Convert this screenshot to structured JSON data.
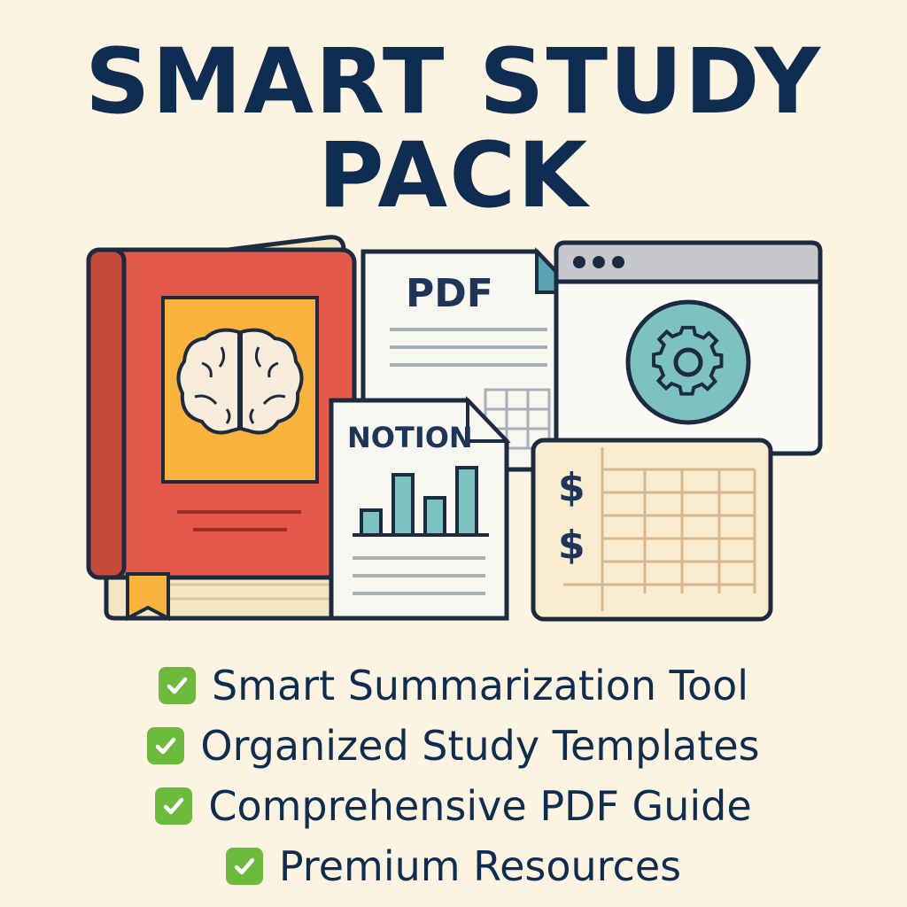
{
  "title": {
    "line1": "SMART STUDY",
    "line2": "PACK"
  },
  "cards": {
    "pdf_label": "PDF",
    "notion_label": "NOTION",
    "currency_1": "$",
    "currency_2": "$"
  },
  "icons": {
    "book": "brain-book-icon",
    "pdf": "pdf-document-icon",
    "browser": "gear-browser-icon",
    "notion": "bar-chart-document-icon",
    "spreadsheet": "spreadsheet-icon",
    "check": "check-icon"
  },
  "features": [
    {
      "label": "Smart Summarization Tool"
    },
    {
      "label": "Organized Study Templates"
    },
    {
      "label": "Comprehensive PDF Guide"
    },
    {
      "label": "Premium Resources"
    }
  ],
  "colors": {
    "background": "#fcf4e1",
    "title": "#0f2d50",
    "book": "#e35a4a",
    "book_label": "#f9b33c",
    "teal": "#7cc3c0",
    "check": "#6cbb3c"
  }
}
